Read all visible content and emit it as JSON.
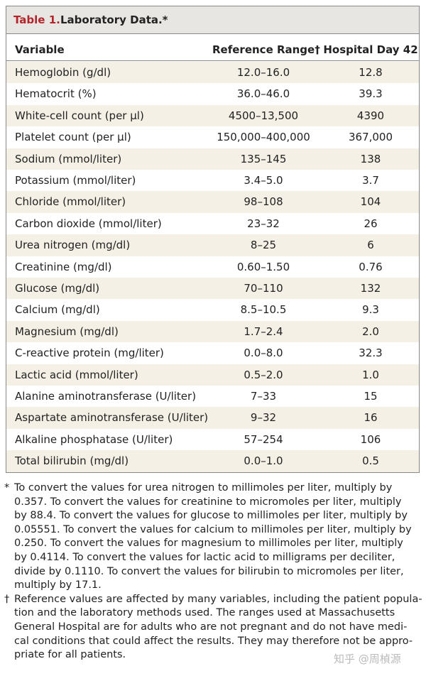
{
  "table": {
    "title": {
      "label": "Table 1.",
      "text": "Laboratory Data.*"
    },
    "header": [
      "Variable",
      "Reference Range†",
      "Hospital Day 42"
    ],
    "rows": [
      [
        "Hemoglobin (g/dl)",
        "12.0–16.0",
        "12.8"
      ],
      [
        "Hematocrit (%)",
        "36.0–46.0",
        "39.3"
      ],
      [
        "White-cell count (per µl)",
        "4500–13,500",
        "4390"
      ],
      [
        "Platelet count (per µl)",
        "150,000–400,000",
        "367,000"
      ],
      [
        "Sodium (mmol/liter)",
        "135–145",
        "138"
      ],
      [
        "Potassium (mmol/liter)",
        "3.4–5.0",
        "3.7"
      ],
      [
        "Chloride (mmol/liter)",
        "98–108",
        "104"
      ],
      [
        "Carbon dioxide (mmol/liter)",
        "23–32",
        "26"
      ],
      [
        "Urea nitrogen (mg/dl)",
        "8–25",
        "6"
      ],
      [
        "Creatinine (mg/dl)",
        "0.60–1.50",
        "0.76"
      ],
      [
        "Glucose (mg/dl)",
        "70–110",
        "132"
      ],
      [
        "Calcium (mg/dl)",
        "8.5–10.5",
        "9.3"
      ],
      [
        "Magnesium (mg/dl)",
        "1.7–2.4",
        "2.0"
      ],
      [
        "C-reactive protein (mg/liter)",
        "0.0–8.0",
        "32.3"
      ],
      [
        "Lactic acid (mmol/liter)",
        "0.5–2.0",
        "1.0"
      ],
      [
        "Alanine aminotransferase (U/liter)",
        "7–33",
        "15"
      ],
      [
        "Aspartate aminotransferase (U/liter)",
        "9–32",
        "16"
      ],
      [
        "Alkaline phosphatase (U/liter)",
        "57–254",
        "106"
      ],
      [
        "Total bilirubin (mg/dl)",
        "0.0–1.0",
        "0.5"
      ]
    ]
  },
  "footnotes": [
    {
      "symbol": "*",
      "lines": [
        "To convert the values for urea nitrogen to millimoles per liter, multiply by",
        "0.357. To convert the values for creatinine to micromoles per liter, multiply",
        "by 88.4. To convert the values for glucose to millimoles per liter, multiply by",
        "0.05551. To convert the values for calcium to millimoles per liter, multiply by",
        "0.250. To convert the values for magnesium to millimoles per liter, multiply",
        "by 0.4114. To convert the values for lactic acid to milligrams per deciliter,",
        "divide by 0.1110. To convert the values for bilirubin to micromoles per liter,",
        "multiply by 17.1."
      ]
    },
    {
      "symbol": "†",
      "lines": [
        "Reference values are affected by many variables, including the patient popula-",
        "tion and the laboratory methods used. The ranges used at Massachusetts",
        "General Hospital are for adults who are not pregnant and do not have medi-",
        "cal conditions that could affect the results. They may therefore not be appro-",
        "priate for all patients."
      ]
    }
  ],
  "watermark": "知乎 @周楨源"
}
